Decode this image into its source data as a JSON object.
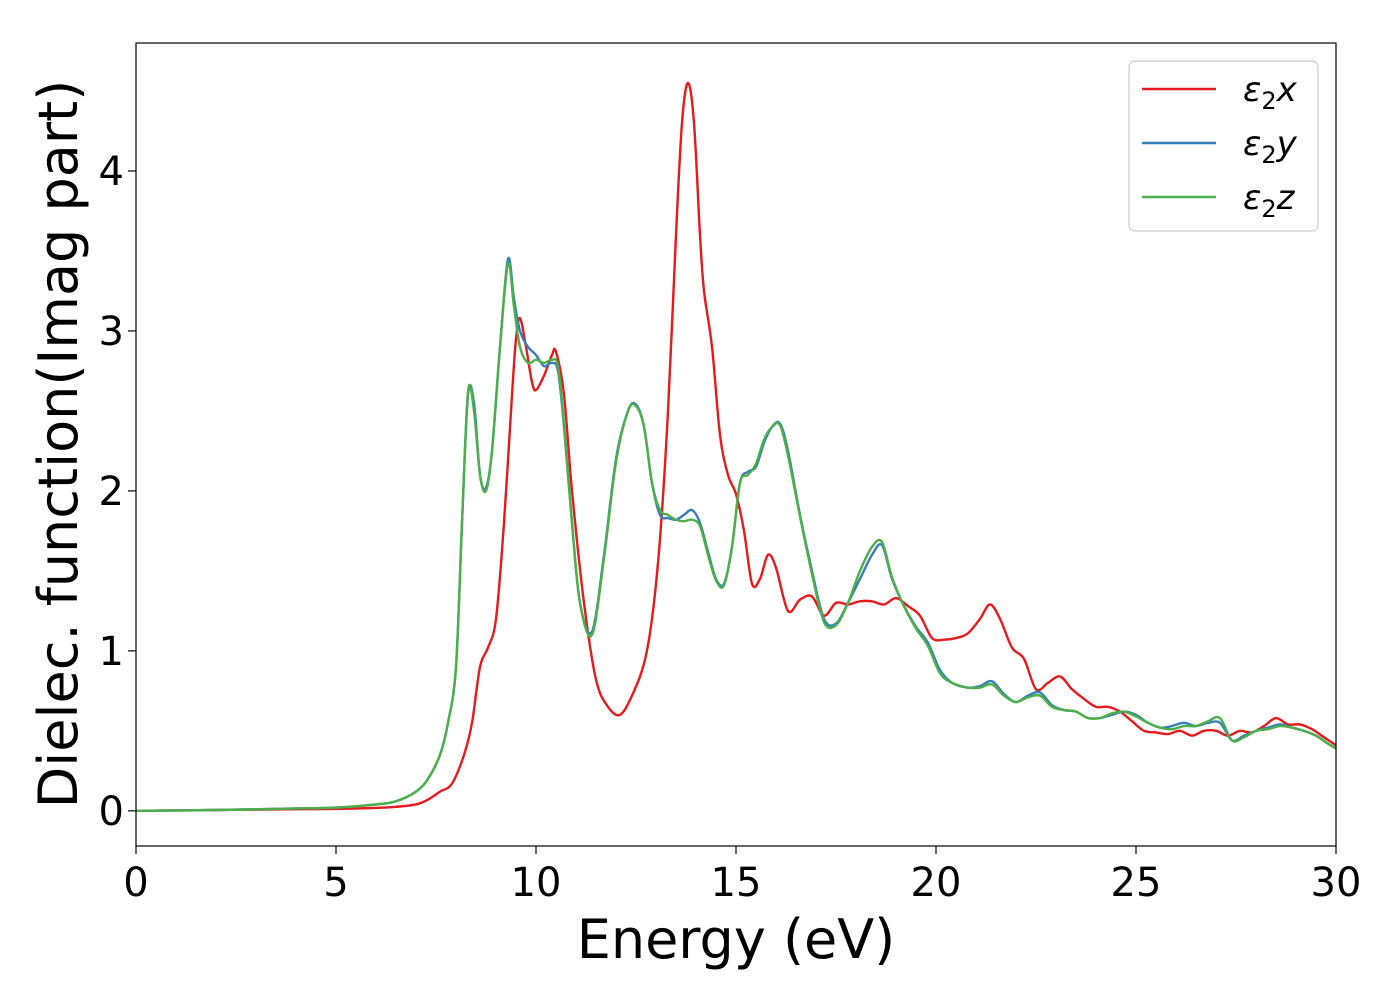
{
  "chart_data": {
    "type": "line",
    "title": "",
    "xlabel": "Energy (eV)",
    "ylabel": "Dielec. function(Imag part)",
    "xlim": [
      0,
      30
    ],
    "ylim": [
      -0.22,
      4.8
    ],
    "xticks": [
      0,
      5,
      10,
      15,
      20,
      25,
      30
    ],
    "xtick_labels": [
      "0",
      "5",
      "10",
      "15",
      "20",
      "25",
      "30"
    ],
    "yticks": [
      0,
      1,
      2,
      3,
      4
    ],
    "ytick_labels": [
      "0",
      "1",
      "2",
      "3",
      "4"
    ],
    "grid": false,
    "legend_position": "top-right",
    "series": [
      {
        "name": "ε2x",
        "legend": {
          "base": "ε",
          "sub": "2",
          "suffix": "x"
        },
        "color": "#e41a1c",
        "x": [
          0,
          2,
          4,
          5,
          6,
          6.5,
          7,
          7.3,
          7.6,
          7.9,
          8.2,
          8.4,
          8.6,
          8.8,
          9.0,
          9.2,
          9.4,
          9.5,
          9.6,
          9.75,
          9.9,
          10.0,
          10.2,
          10.4,
          10.5,
          10.7,
          10.9,
          11.2,
          11.5,
          11.8,
          12.1,
          12.4,
          12.7,
          12.9,
          13.1,
          13.3,
          13.5,
          13.65,
          13.8,
          13.95,
          14.1,
          14.2,
          14.4,
          14.6,
          14.8,
          15.0,
          15.2,
          15.4,
          15.6,
          15.8,
          16.0,
          16.3,
          16.6,
          16.9,
          17.2,
          17.5,
          17.8,
          18.1,
          18.4,
          18.7,
          19.0,
          19.3,
          19.6,
          19.9,
          20.2,
          20.5,
          20.8,
          21.1,
          21.35,
          21.6,
          21.9,
          22.2,
          22.5,
          22.8,
          23.1,
          23.4,
          23.7,
          24.0,
          24.3,
          24.6,
          24.9,
          25.2,
          25.5,
          25.8,
          26.1,
          26.4,
          26.7,
          27.0,
          27.3,
          27.6,
          27.9,
          28.2,
          28.5,
          28.8,
          29.1,
          29.4,
          29.7,
          30.0
        ],
        "y": [
          0.0,
          0.005,
          0.01,
          0.012,
          0.018,
          0.025,
          0.04,
          0.07,
          0.12,
          0.17,
          0.35,
          0.55,
          0.9,
          1.02,
          1.2,
          1.8,
          2.6,
          2.95,
          3.08,
          2.9,
          2.68,
          2.63,
          2.72,
          2.85,
          2.87,
          2.6,
          2.0,
          1.3,
          0.82,
          0.65,
          0.6,
          0.72,
          0.92,
          1.2,
          1.7,
          2.5,
          3.6,
          4.3,
          4.55,
          4.3,
          3.6,
          3.25,
          2.9,
          2.35,
          2.1,
          1.98,
          1.75,
          1.42,
          1.45,
          1.6,
          1.52,
          1.25,
          1.32,
          1.34,
          1.22,
          1.3,
          1.29,
          1.31,
          1.31,
          1.29,
          1.33,
          1.28,
          1.22,
          1.08,
          1.07,
          1.08,
          1.11,
          1.2,
          1.29,
          1.2,
          1.02,
          0.95,
          0.76,
          0.8,
          0.84,
          0.76,
          0.7,
          0.65,
          0.65,
          0.62,
          0.56,
          0.5,
          0.49,
          0.48,
          0.5,
          0.47,
          0.5,
          0.5,
          0.47,
          0.5,
          0.49,
          0.53,
          0.58,
          0.54,
          0.54,
          0.51,
          0.46,
          0.41
        ]
      },
      {
        "name": "ε2y",
        "legend": {
          "base": "ε",
          "sub": "2",
          "suffix": "y"
        },
        "color": "#377eb8",
        "x": [
          0,
          2,
          4,
          5,
          6,
          6.5,
          7,
          7.3,
          7.6,
          7.8,
          8.0,
          8.15,
          8.3,
          8.45,
          8.6,
          8.75,
          8.9,
          9.1,
          9.3,
          9.45,
          9.6,
          9.8,
          10.0,
          10.2,
          10.4,
          10.55,
          10.7,
          10.9,
          11.1,
          11.4,
          11.7,
          12.0,
          12.3,
          12.5,
          12.7,
          12.9,
          13.1,
          13.3,
          13.5,
          13.7,
          13.9,
          14.1,
          14.3,
          14.5,
          14.7,
          14.9,
          15.1,
          15.3,
          15.5,
          15.7,
          15.9,
          16.1,
          16.3,
          16.6,
          16.9,
          17.2,
          17.5,
          17.8,
          18.1,
          18.4,
          18.65,
          18.9,
          19.2,
          19.5,
          19.8,
          20.1,
          20.4,
          20.8,
          21.1,
          21.4,
          21.7,
          22.0,
          22.3,
          22.6,
          22.9,
          23.2,
          23.5,
          23.8,
          24.1,
          24.4,
          24.7,
          25.0,
          25.3,
          25.6,
          25.9,
          26.2,
          26.5,
          26.8,
          27.1,
          27.4,
          27.7,
          28.0,
          28.3,
          28.6,
          28.9,
          29.2,
          29.5,
          29.8,
          30.0
        ],
        "y": [
          0.0,
          0.005,
          0.015,
          0.02,
          0.04,
          0.06,
          0.12,
          0.2,
          0.35,
          0.55,
          0.9,
          1.8,
          2.6,
          2.55,
          2.1,
          2.02,
          2.25,
          2.9,
          3.45,
          3.2,
          3.0,
          2.9,
          2.85,
          2.78,
          2.8,
          2.75,
          2.4,
          1.8,
          1.3,
          1.12,
          1.6,
          2.2,
          2.5,
          2.54,
          2.4,
          2.05,
          1.85,
          1.83,
          1.82,
          1.85,
          1.88,
          1.8,
          1.62,
          1.45,
          1.42,
          1.65,
          2.05,
          2.12,
          2.15,
          2.3,
          2.4,
          2.42,
          2.25,
          1.85,
          1.5,
          1.2,
          1.17,
          1.3,
          1.45,
          1.6,
          1.66,
          1.45,
          1.28,
          1.15,
          1.05,
          0.88,
          0.8,
          0.77,
          0.78,
          0.81,
          0.73,
          0.68,
          0.72,
          0.74,
          0.66,
          0.63,
          0.62,
          0.58,
          0.58,
          0.6,
          0.62,
          0.6,
          0.55,
          0.52,
          0.53,
          0.55,
          0.53,
          0.55,
          0.55,
          0.44,
          0.47,
          0.5,
          0.52,
          0.54,
          0.52,
          0.5,
          0.47,
          0.42,
          0.39
        ]
      },
      {
        "name": "ε2z",
        "legend": {
          "base": "ε",
          "sub": "2",
          "suffix": "z"
        },
        "color": "#4daf4a",
        "x": [
          0,
          2,
          4,
          5,
          6,
          6.5,
          7,
          7.3,
          7.6,
          7.8,
          8.0,
          8.15,
          8.3,
          8.45,
          8.6,
          8.75,
          8.9,
          9.1,
          9.3,
          9.45,
          9.6,
          9.8,
          10.0,
          10.2,
          10.4,
          10.55,
          10.7,
          10.9,
          11.1,
          11.4,
          11.7,
          12.0,
          12.3,
          12.5,
          12.7,
          12.9,
          13.1,
          13.3,
          13.5,
          13.7,
          13.9,
          14.1,
          14.3,
          14.5,
          14.7,
          14.9,
          15.1,
          15.3,
          15.5,
          15.7,
          15.9,
          16.1,
          16.3,
          16.6,
          16.9,
          17.2,
          17.5,
          17.8,
          18.1,
          18.4,
          18.65,
          18.9,
          19.2,
          19.5,
          19.8,
          20.1,
          20.4,
          20.8,
          21.1,
          21.4,
          21.7,
          22.0,
          22.3,
          22.6,
          22.9,
          23.2,
          23.5,
          23.8,
          24.1,
          24.4,
          24.7,
          25.0,
          25.3,
          25.6,
          25.9,
          26.2,
          26.5,
          26.8,
          27.1,
          27.4,
          27.7,
          28.0,
          28.3,
          28.6,
          28.9,
          29.2,
          29.5,
          29.8,
          30.0
        ],
        "y": [
          0.0,
          0.005,
          0.015,
          0.02,
          0.04,
          0.06,
          0.12,
          0.2,
          0.35,
          0.55,
          0.9,
          1.8,
          2.62,
          2.5,
          2.1,
          2.0,
          2.25,
          2.9,
          3.42,
          3.15,
          2.9,
          2.8,
          2.82,
          2.8,
          2.82,
          2.78,
          2.42,
          1.8,
          1.3,
          1.1,
          1.58,
          2.18,
          2.5,
          2.53,
          2.4,
          2.05,
          1.88,
          1.85,
          1.82,
          1.81,
          1.82,
          1.78,
          1.6,
          1.44,
          1.41,
          1.65,
          2.05,
          2.1,
          2.17,
          2.32,
          2.4,
          2.41,
          2.22,
          1.84,
          1.48,
          1.18,
          1.16,
          1.3,
          1.5,
          1.65,
          1.68,
          1.46,
          1.28,
          1.14,
          1.03,
          0.86,
          0.8,
          0.77,
          0.77,
          0.79,
          0.72,
          0.68,
          0.71,
          0.72,
          0.65,
          0.63,
          0.62,
          0.58,
          0.58,
          0.61,
          0.62,
          0.59,
          0.55,
          0.52,
          0.51,
          0.53,
          0.53,
          0.56,
          0.58,
          0.44,
          0.46,
          0.5,
          0.51,
          0.53,
          0.52,
          0.5,
          0.47,
          0.42,
          0.39
        ]
      }
    ]
  }
}
